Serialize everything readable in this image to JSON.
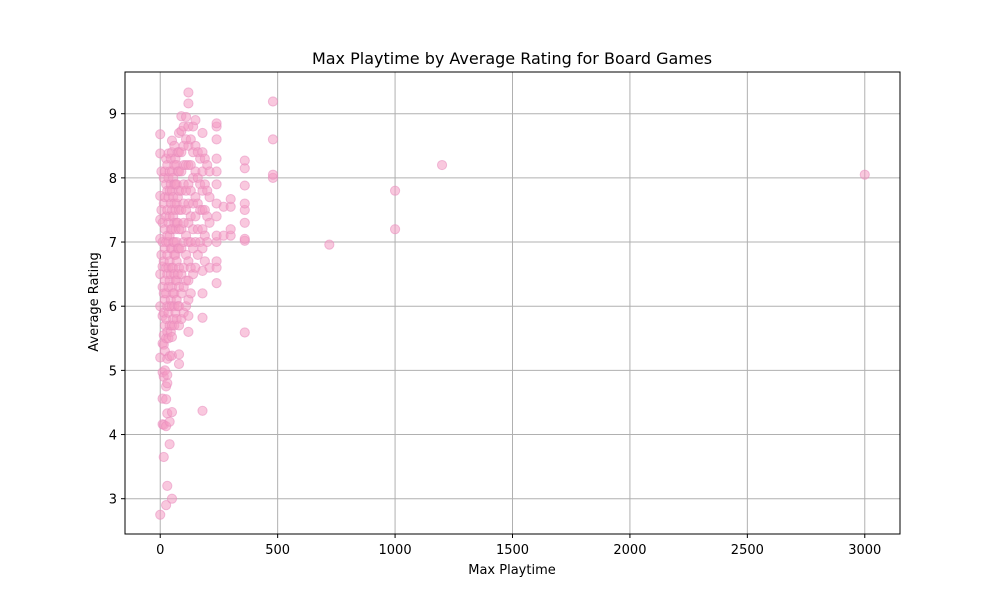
{
  "chart_data": {
    "type": "scatter",
    "title": "Max Playtime by Average Rating for Board Games",
    "xlabel": "Max Playtime",
    "ylabel": "Average Rating",
    "xlim": [
      -150,
      3150
    ],
    "ylim": [
      2.45,
      9.65
    ],
    "xticks": [
      0,
      500,
      1000,
      1500,
      2000,
      2500,
      3000
    ],
    "yticks": [
      3,
      4,
      5,
      6,
      7,
      8,
      9
    ],
    "grid": true,
    "marker_color": "#f49ac2",
    "marker_edge_color": "#e88dbd",
    "marker_alpha": 0.55,
    "series": [
      {
        "points": [
          [
            0,
            2.75
          ],
          [
            0,
            8.68
          ],
          [
            0,
            8.38
          ],
          [
            0,
            7.72
          ],
          [
            0,
            7.35
          ],
          [
            0,
            7.05
          ],
          [
            0,
            6.5
          ],
          [
            0,
            6.0
          ],
          [
            0,
            5.2
          ],
          [
            5,
            8.1
          ],
          [
            5,
            7.5
          ],
          [
            5,
            6.8
          ],
          [
            10,
            4.97
          ],
          [
            10,
            4.56
          ],
          [
            10,
            4.16
          ],
          [
            10,
            5.42
          ],
          [
            10,
            5.85
          ],
          [
            10,
            6.3
          ],
          [
            10,
            6.62
          ],
          [
            10,
            7.0
          ],
          [
            10,
            7.3
          ],
          [
            15,
            3.65
          ],
          [
            15,
            4.15
          ],
          [
            15,
            4.9
          ],
          [
            15,
            5.4
          ],
          [
            15,
            5.55
          ],
          [
            15,
            5.9
          ],
          [
            15,
            6.2
          ],
          [
            15,
            6.7
          ],
          [
            15,
            7.6
          ],
          [
            15,
            8.0
          ],
          [
            20,
            5.0
          ],
          [
            20,
            5.3
          ],
          [
            20,
            5.7
          ],
          [
            20,
            6.1
          ],
          [
            20,
            6.4
          ],
          [
            20,
            6.9
          ],
          [
            20,
            7.2
          ],
          [
            20,
            7.7
          ],
          [
            20,
            8.1
          ],
          [
            25,
            2.9
          ],
          [
            25,
            4.13
          ],
          [
            25,
            4.55
          ],
          [
            25,
            4.75
          ],
          [
            25,
            5.5
          ],
          [
            25,
            5.8
          ],
          [
            25,
            6.2
          ],
          [
            25,
            6.6
          ],
          [
            25,
            7.0
          ],
          [
            25,
            7.4
          ],
          [
            25,
            7.9
          ],
          [
            25,
            8.3
          ],
          [
            30,
            3.2
          ],
          [
            30,
            4.33
          ],
          [
            30,
            4.8
          ],
          [
            30,
            4.93
          ],
          [
            30,
            5.18
          ],
          [
            30,
            5.6
          ],
          [
            30,
            6.0
          ],
          [
            30,
            6.5
          ],
          [
            30,
            6.8
          ],
          [
            30,
            7.1
          ],
          [
            30,
            7.5
          ],
          [
            30,
            7.8
          ],
          [
            30,
            8.2
          ],
          [
            35,
            5.5
          ],
          [
            35,
            5.9
          ],
          [
            35,
            6.3
          ],
          [
            35,
            6.6
          ],
          [
            35,
            7.0
          ],
          [
            35,
            7.3
          ],
          [
            35,
            7.7
          ],
          [
            35,
            8.0
          ],
          [
            35,
            8.38
          ],
          [
            40,
            3.85
          ],
          [
            40,
            4.2
          ],
          [
            40,
            5.22
          ],
          [
            40,
            5.7
          ],
          [
            40,
            6.0
          ],
          [
            40,
            6.4
          ],
          [
            40,
            6.7
          ],
          [
            40,
            7.1
          ],
          [
            40,
            7.4
          ],
          [
            40,
            7.8
          ],
          [
            40,
            8.1
          ],
          [
            45,
            5.6
          ],
          [
            45,
            6.1
          ],
          [
            45,
            6.5
          ],
          [
            45,
            6.9
          ],
          [
            45,
            7.2
          ],
          [
            45,
            7.6
          ],
          [
            45,
            7.9
          ],
          [
            45,
            8.3
          ],
          [
            50,
            3.0
          ],
          [
            50,
            4.35
          ],
          [
            50,
            5.23
          ],
          [
            50,
            5.52
          ],
          [
            50,
            5.7
          ],
          [
            50,
            6.0
          ],
          [
            50,
            6.3
          ],
          [
            50,
            6.6
          ],
          [
            50,
            6.9
          ],
          [
            50,
            7.2
          ],
          [
            50,
            7.5
          ],
          [
            50,
            7.8
          ],
          [
            50,
            8.1
          ],
          [
            50,
            8.4
          ],
          [
            50,
            8.58
          ],
          [
            55,
            5.8
          ],
          [
            55,
            6.2
          ],
          [
            55,
            6.6
          ],
          [
            55,
            7.0
          ],
          [
            55,
            7.4
          ],
          [
            55,
            7.7
          ],
          [
            55,
            8.0
          ],
          [
            60,
            5.7
          ],
          [
            60,
            6.0
          ],
          [
            60,
            6.2
          ],
          [
            60,
            6.5
          ],
          [
            60,
            6.8
          ],
          [
            60,
            7.0
          ],
          [
            60,
            7.3
          ],
          [
            60,
            7.6
          ],
          [
            60,
            7.9
          ],
          [
            60,
            8.2
          ],
          [
            60,
            8.5
          ],
          [
            65,
            5.9
          ],
          [
            65,
            6.4
          ],
          [
            65,
            6.8
          ],
          [
            65,
            7.2
          ],
          [
            65,
            7.5
          ],
          [
            65,
            7.9
          ],
          [
            65,
            8.3
          ],
          [
            70,
            5.8
          ],
          [
            70,
            6.1
          ],
          [
            70,
            6.4
          ],
          [
            70,
            6.7
          ],
          [
            70,
            7.0
          ],
          [
            70,
            7.3
          ],
          [
            70,
            7.6
          ],
          [
            70,
            7.9
          ],
          [
            70,
            8.2
          ],
          [
            75,
            6.0
          ],
          [
            75,
            6.5
          ],
          [
            75,
            6.9
          ],
          [
            75,
            7.3
          ],
          [
            75,
            7.7
          ],
          [
            75,
            8.1
          ],
          [
            75,
            8.4
          ],
          [
            80,
            5.1
          ],
          [
            80,
            5.25
          ],
          [
            80,
            5.7
          ],
          [
            80,
            6.0
          ],
          [
            80,
            6.3
          ],
          [
            80,
            6.6
          ],
          [
            80,
            6.9
          ],
          [
            80,
            7.2
          ],
          [
            80,
            7.5
          ],
          [
            80,
            7.8
          ],
          [
            80,
            8.1
          ],
          [
            80,
            8.4
          ],
          [
            80,
            8.7
          ],
          [
            90,
            5.8
          ],
          [
            90,
            6.2
          ],
          [
            90,
            6.5
          ],
          [
            90,
            6.9
          ],
          [
            90,
            7.2
          ],
          [
            90,
            7.5
          ],
          [
            90,
            7.8
          ],
          [
            90,
            8.1
          ],
          [
            90,
            8.4
          ],
          [
            90,
            8.73
          ],
          [
            90,
            8.96
          ],
          [
            100,
            5.9
          ],
          [
            100,
            6.3
          ],
          [
            100,
            6.6
          ],
          [
            100,
            7.0
          ],
          [
            100,
            7.3
          ],
          [
            100,
            7.6
          ],
          [
            100,
            7.9
          ],
          [
            100,
            8.2
          ],
          [
            100,
            8.5
          ],
          [
            100,
            8.8
          ],
          [
            110,
            6.0
          ],
          [
            110,
            6.4
          ],
          [
            110,
            6.8
          ],
          [
            110,
            7.1
          ],
          [
            110,
            7.5
          ],
          [
            110,
            7.8
          ],
          [
            110,
            8.2
          ],
          [
            110,
            8.6
          ],
          [
            110,
            8.95
          ],
          [
            120,
            5.6
          ],
          [
            120,
            5.85
          ],
          [
            120,
            6.1
          ],
          [
            120,
            6.4
          ],
          [
            120,
            6.7
          ],
          [
            120,
            7.0
          ],
          [
            120,
            7.3
          ],
          [
            120,
            7.6
          ],
          [
            120,
            7.9
          ],
          [
            120,
            8.2
          ],
          [
            120,
            8.5
          ],
          [
            120,
            8.8
          ],
          [
            120,
            9.16
          ],
          [
            120,
            9.33
          ],
          [
            130,
            6.2
          ],
          [
            130,
            6.6
          ],
          [
            130,
            7.0
          ],
          [
            130,
            7.4
          ],
          [
            130,
            7.8
          ],
          [
            130,
            8.2
          ],
          [
            130,
            8.6
          ],
          [
            140,
            6.5
          ],
          [
            140,
            6.9
          ],
          [
            140,
            7.2
          ],
          [
            140,
            7.6
          ],
          [
            140,
            8.0
          ],
          [
            140,
            8.4
          ],
          [
            140,
            8.8
          ],
          [
            150,
            6.6
          ],
          [
            150,
            7.0
          ],
          [
            150,
            7.4
          ],
          [
            150,
            7.7
          ],
          [
            150,
            8.1
          ],
          [
            150,
            8.5
          ],
          [
            150,
            8.9
          ],
          [
            160,
            6.8
          ],
          [
            160,
            7.2
          ],
          [
            160,
            7.6
          ],
          [
            160,
            8.0
          ],
          [
            160,
            8.4
          ],
          [
            170,
            7.0
          ],
          [
            170,
            7.5
          ],
          [
            170,
            7.9
          ],
          [
            170,
            8.3
          ],
          [
            180,
            4.37
          ],
          [
            180,
            5.82
          ],
          [
            180,
            6.2
          ],
          [
            180,
            6.55
          ],
          [
            180,
            6.9
          ],
          [
            180,
            7.2
          ],
          [
            180,
            7.5
          ],
          [
            180,
            7.8
          ],
          [
            180,
            8.1
          ],
          [
            180,
            8.4
          ],
          [
            180,
            8.7
          ],
          [
            190,
            6.7
          ],
          [
            190,
            7.1
          ],
          [
            190,
            7.5
          ],
          [
            190,
            7.9
          ],
          [
            190,
            8.3
          ],
          [
            200,
            7.0
          ],
          [
            200,
            7.4
          ],
          [
            200,
            7.8
          ],
          [
            200,
            8.2
          ],
          [
            210,
            6.6
          ],
          [
            210,
            7.3
          ],
          [
            210,
            7.7
          ],
          [
            210,
            8.1
          ],
          [
            240,
            6.36
          ],
          [
            240,
            6.6
          ],
          [
            240,
            6.7
          ],
          [
            240,
            7.0
          ],
          [
            240,
            7.1
          ],
          [
            240,
            7.4
          ],
          [
            240,
            7.6
          ],
          [
            240,
            7.9
          ],
          [
            240,
            8.1
          ],
          [
            240,
            8.3
          ],
          [
            240,
            8.6
          ],
          [
            240,
            8.8
          ],
          [
            240,
            8.85
          ],
          [
            270,
            7.1
          ],
          [
            270,
            7.55
          ],
          [
            300,
            7.1
          ],
          [
            300,
            7.2
          ],
          [
            300,
            7.55
          ],
          [
            300,
            7.67
          ],
          [
            360,
            5.59
          ],
          [
            360,
            7.02
          ],
          [
            360,
            7.05
          ],
          [
            360,
            7.3
          ],
          [
            360,
            7.5
          ],
          [
            360,
            7.6
          ],
          [
            360,
            7.88
          ],
          [
            360,
            8.15
          ],
          [
            360,
            8.27
          ],
          [
            480,
            8.0
          ],
          [
            480,
            8.05
          ],
          [
            480,
            8.6
          ],
          [
            480,
            9.19
          ],
          [
            720,
            6.96
          ],
          [
            1000,
            7.2
          ],
          [
            1000,
            7.8
          ],
          [
            1200,
            8.2
          ],
          [
            3000,
            8.05
          ]
        ]
      }
    ]
  }
}
